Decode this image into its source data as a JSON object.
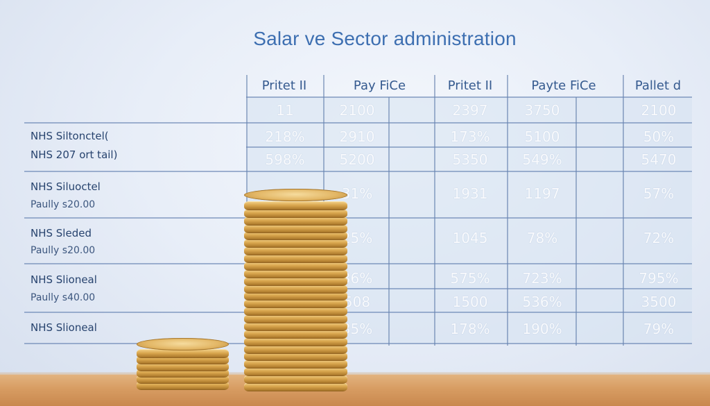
{
  "title": "Salar ve Sector administration",
  "headers": [
    "Pritet II",
    "Pay FiCe",
    "Pritet II",
    "Payte FiCe",
    "Pallet d"
  ],
  "row_labels": [
    [
      "NHS Siltonctel(",
      "NHS 207 ort tail)"
    ],
    [
      "NHS Siluoctel",
      "Paully s20.00"
    ],
    [
      "NHS Sleded",
      "Paully s20.00"
    ],
    [
      "NHS Slioneal",
      "Paully s40.00"
    ],
    [
      "NHS Slioneal"
    ]
  ],
  "cells": [
    [
      "11",
      "2100",
      "2397",
      "3750",
      "2100"
    ],
    [
      "218%",
      "2910",
      "173%",
      "5100",
      "50%"
    ],
    [
      "598%",
      "5200",
      "5350",
      "549%",
      "5470"
    ],
    [
      "",
      "31%",
      "1931",
      "1197",
      "57%"
    ],
    [
      "",
      "25%",
      "1045",
      "78%",
      "72%"
    ],
    [
      "",
      "36%",
      "575%",
      "723%",
      "795%"
    ],
    [
      "",
      "508",
      "1500",
      "536%",
      "3500"
    ],
    [
      "",
      "35%",
      "178%",
      "190%",
      "79%"
    ]
  ],
  "colors": {
    "title": "#3d6fb1",
    "grid": "#6884b2",
    "coin": "#d9a64e",
    "tabletop": "#d79c62"
  }
}
